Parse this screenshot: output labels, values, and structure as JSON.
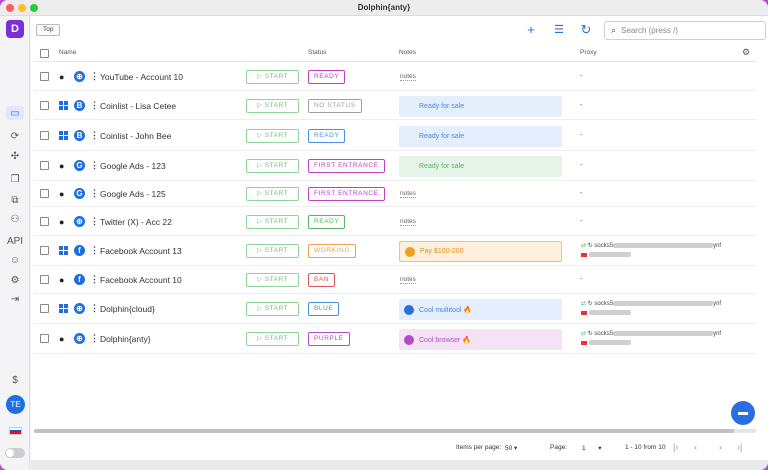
{
  "window": {
    "title": "Dolphin{anty}"
  },
  "sidebar": {
    "logo": "D",
    "avatar_initials": "TE"
  },
  "toolbar": {
    "top_button": "Top",
    "search_placeholder": "Search (press /)"
  },
  "columns": {
    "name": "Name",
    "status": "Status",
    "notes": "Notes",
    "proxy": "Proxy"
  },
  "start_label": "START",
  "rows": [
    {
      "os": "apple",
      "site": "web",
      "name": "YouTube - Account 10",
      "status": "READY",
      "status_color": "#c13fc1",
      "note_type": "plain",
      "note": "notes",
      "proxy": "-"
    },
    {
      "os": "windows",
      "site": "bitcoin",
      "name": "Coinlist - Lisa Cetee",
      "status": "NO STATUS",
      "status_color": "#9aa0a6",
      "note_type": "box",
      "note_icon": "!",
      "note": "Ready for sale",
      "note_color": "blue",
      "proxy": "-"
    },
    {
      "os": "windows",
      "site": "bitcoin",
      "name": "Coinlist - John Bee",
      "status": "READY",
      "status_color": "#4a90e2",
      "note_type": "box",
      "note_icon": "!",
      "note": "Ready for sale",
      "note_color": "blue",
      "proxy": "-"
    },
    {
      "os": "apple",
      "site": "google",
      "name": "Google Ads - 123",
      "status": "FIRST ENTRANCE",
      "status_color": "#c13fc1",
      "note_type": "box",
      "note_icon": "!",
      "note": "Ready for sale",
      "note_color": "green",
      "proxy": "-"
    },
    {
      "os": "apple",
      "site": "google",
      "name": "Google Ads - 125",
      "status": "FIRST ENTRANCE",
      "status_color": "#c13fc1",
      "note_type": "plain",
      "note": "notes",
      "proxy": "-"
    },
    {
      "os": "apple",
      "site": "web",
      "name": "Twitter (X) - Acc 22",
      "status": "READY",
      "status_color": "#58b368",
      "note_type": "plain",
      "note": "notes",
      "proxy": "-"
    },
    {
      "os": "windows",
      "site": "facebook",
      "name": "Facebook Account 13",
      "status": "WORKING",
      "status_color": "#f0a050",
      "note_type": "box",
      "note_icon": "✓",
      "note": "Pay $100-200",
      "note_color": "orange",
      "proxy": "socks5",
      "proxy_suffix": "ynf"
    },
    {
      "os": "apple",
      "site": "facebook",
      "name": "Facebook Account 10",
      "status": "BAN",
      "status_color": "#e05555",
      "note_type": "plain",
      "note": "notes",
      "proxy": "-"
    },
    {
      "os": "windows",
      "site": "web",
      "name": "Dolphin{cloud}",
      "status": "BLUE",
      "status_color": "#4a90e2",
      "note_type": "box",
      "note_icon": "✓",
      "note": "Cool multitool 🔥",
      "note_color": "blue",
      "proxy": "socks5",
      "proxy_suffix": "ynf"
    },
    {
      "os": "apple",
      "site": "web",
      "name": "Dolphin{anty}",
      "status": "PURPLE",
      "status_color": "#b24bc7",
      "note_type": "box",
      "note_icon": "✓",
      "note": "Cool browser 🔥",
      "note_color": "purple",
      "proxy": "socks5",
      "proxy_suffix": "ynf"
    }
  ],
  "pagination": {
    "items_label": "Items per page:",
    "items_value": "50",
    "page_label": "Page:",
    "page_value": "1",
    "range": "1 - 10 from 10"
  },
  "colors": {
    "accent": "#2a6fe0",
    "sidebar_logo": "#7b2fd6",
    "start_green": "#6ec47a"
  }
}
